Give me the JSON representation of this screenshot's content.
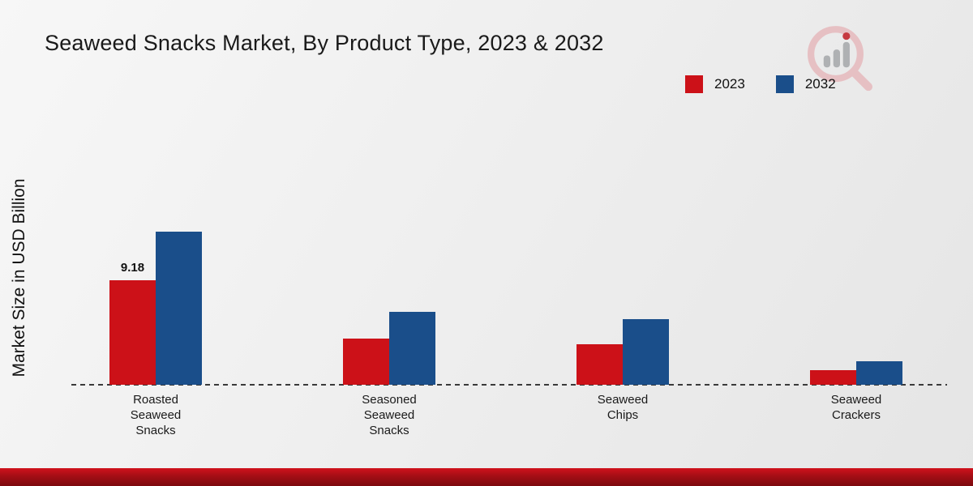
{
  "title": "Seaweed Snacks Market, By Product Type, 2023 & 2032",
  "ylabel": "Market Size in USD Billion",
  "legend": [
    {
      "label": "2023",
      "color": "#cc1118"
    },
    {
      "label": "2032",
      "color": "#1a4e8a"
    }
  ],
  "chart_data": {
    "type": "bar",
    "title": "Seaweed Snacks Market, By Product Type, 2023 & 2032",
    "xlabel": "",
    "ylabel": "Market Size in USD Billion",
    "categories": [
      "Roasted Seaweed Snacks",
      "Seasoned Seaweed Snacks",
      "Seaweed Chips",
      "Seaweed Crackers"
    ],
    "category_lines": [
      [
        "Roasted",
        "Seaweed",
        "Snacks"
      ],
      [
        "Seasoned",
        "Seaweed",
        "Snacks"
      ],
      [
        "Seaweed",
        "Chips"
      ],
      [
        "Seaweed",
        "Crackers"
      ]
    ],
    "series": [
      {
        "name": "2023",
        "color": "#cc1118",
        "values": [
          9.18,
          4.1,
          3.55,
          1.3
        ]
      },
      {
        "name": "2032",
        "color": "#1a4e8a",
        "values": [
          13.5,
          6.4,
          5.75,
          2.1
        ]
      }
    ],
    "value_labels": [
      {
        "series": "2023",
        "category_index": 0,
        "text": "9.18"
      }
    ],
    "ylim": [
      0,
      15
    ],
    "grid": false,
    "legend_position": "top-right",
    "baseline": "dashed"
  },
  "brand": {
    "logo_ring_color": "#e6bcbf",
    "logo_bar_color": "#a9abae",
    "logo_dot_color": "#c2262e"
  },
  "footer": {
    "gradient_top": "#d0121c",
    "gradient_mid": "#a30e15",
    "gradient_bottom": "#7c0a0e"
  }
}
